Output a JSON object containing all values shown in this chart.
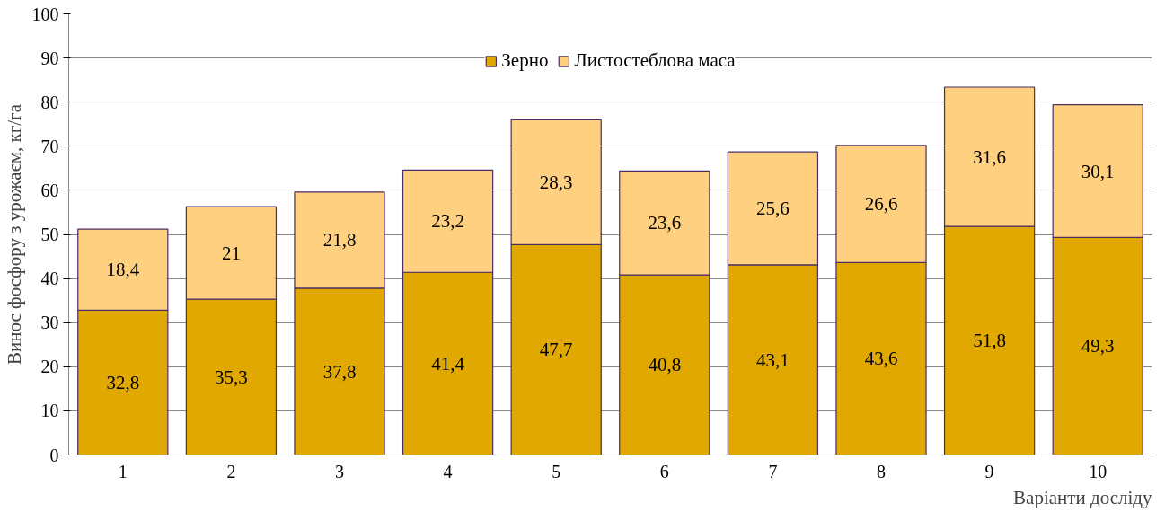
{
  "chart_data": {
    "type": "bar",
    "stacked": true,
    "xlabel": "Варіанти досліду",
    "ylabel": "Винос фосфору з урожаєм, кг/га",
    "categories": [
      "1",
      "2",
      "3",
      "4",
      "5",
      "6",
      "7",
      "8",
      "9",
      "10"
    ],
    "series": [
      {
        "name": "Зерно",
        "color": "#e0a800",
        "values": [
          32.8,
          35.3,
          37.8,
          41.4,
          47.7,
          40.8,
          43.1,
          43.6,
          51.8,
          49.3
        ],
        "value_labels": [
          "32,8",
          "35,3",
          "37,8",
          "41,4",
          "47,7",
          "40,8",
          "43,1",
          "43,6",
          "51,8",
          "49,3"
        ]
      },
      {
        "name": "Листостеблова маса",
        "color": "#ffd080",
        "values": [
          18.4,
          21,
          21.8,
          23.2,
          28.3,
          23.6,
          25.6,
          26.6,
          31.6,
          30.1
        ],
        "value_labels": [
          "18,4",
          "21",
          "21,8",
          "23,2",
          "28,3",
          "23,6",
          "25,6",
          "26,6",
          "31,6",
          "30,1"
        ]
      }
    ],
    "ylim": [
      0,
      100
    ],
    "yticks": [
      0,
      10,
      20,
      30,
      40,
      50,
      60,
      70,
      80,
      90,
      100
    ],
    "grid": "y",
    "legend": "top"
  }
}
